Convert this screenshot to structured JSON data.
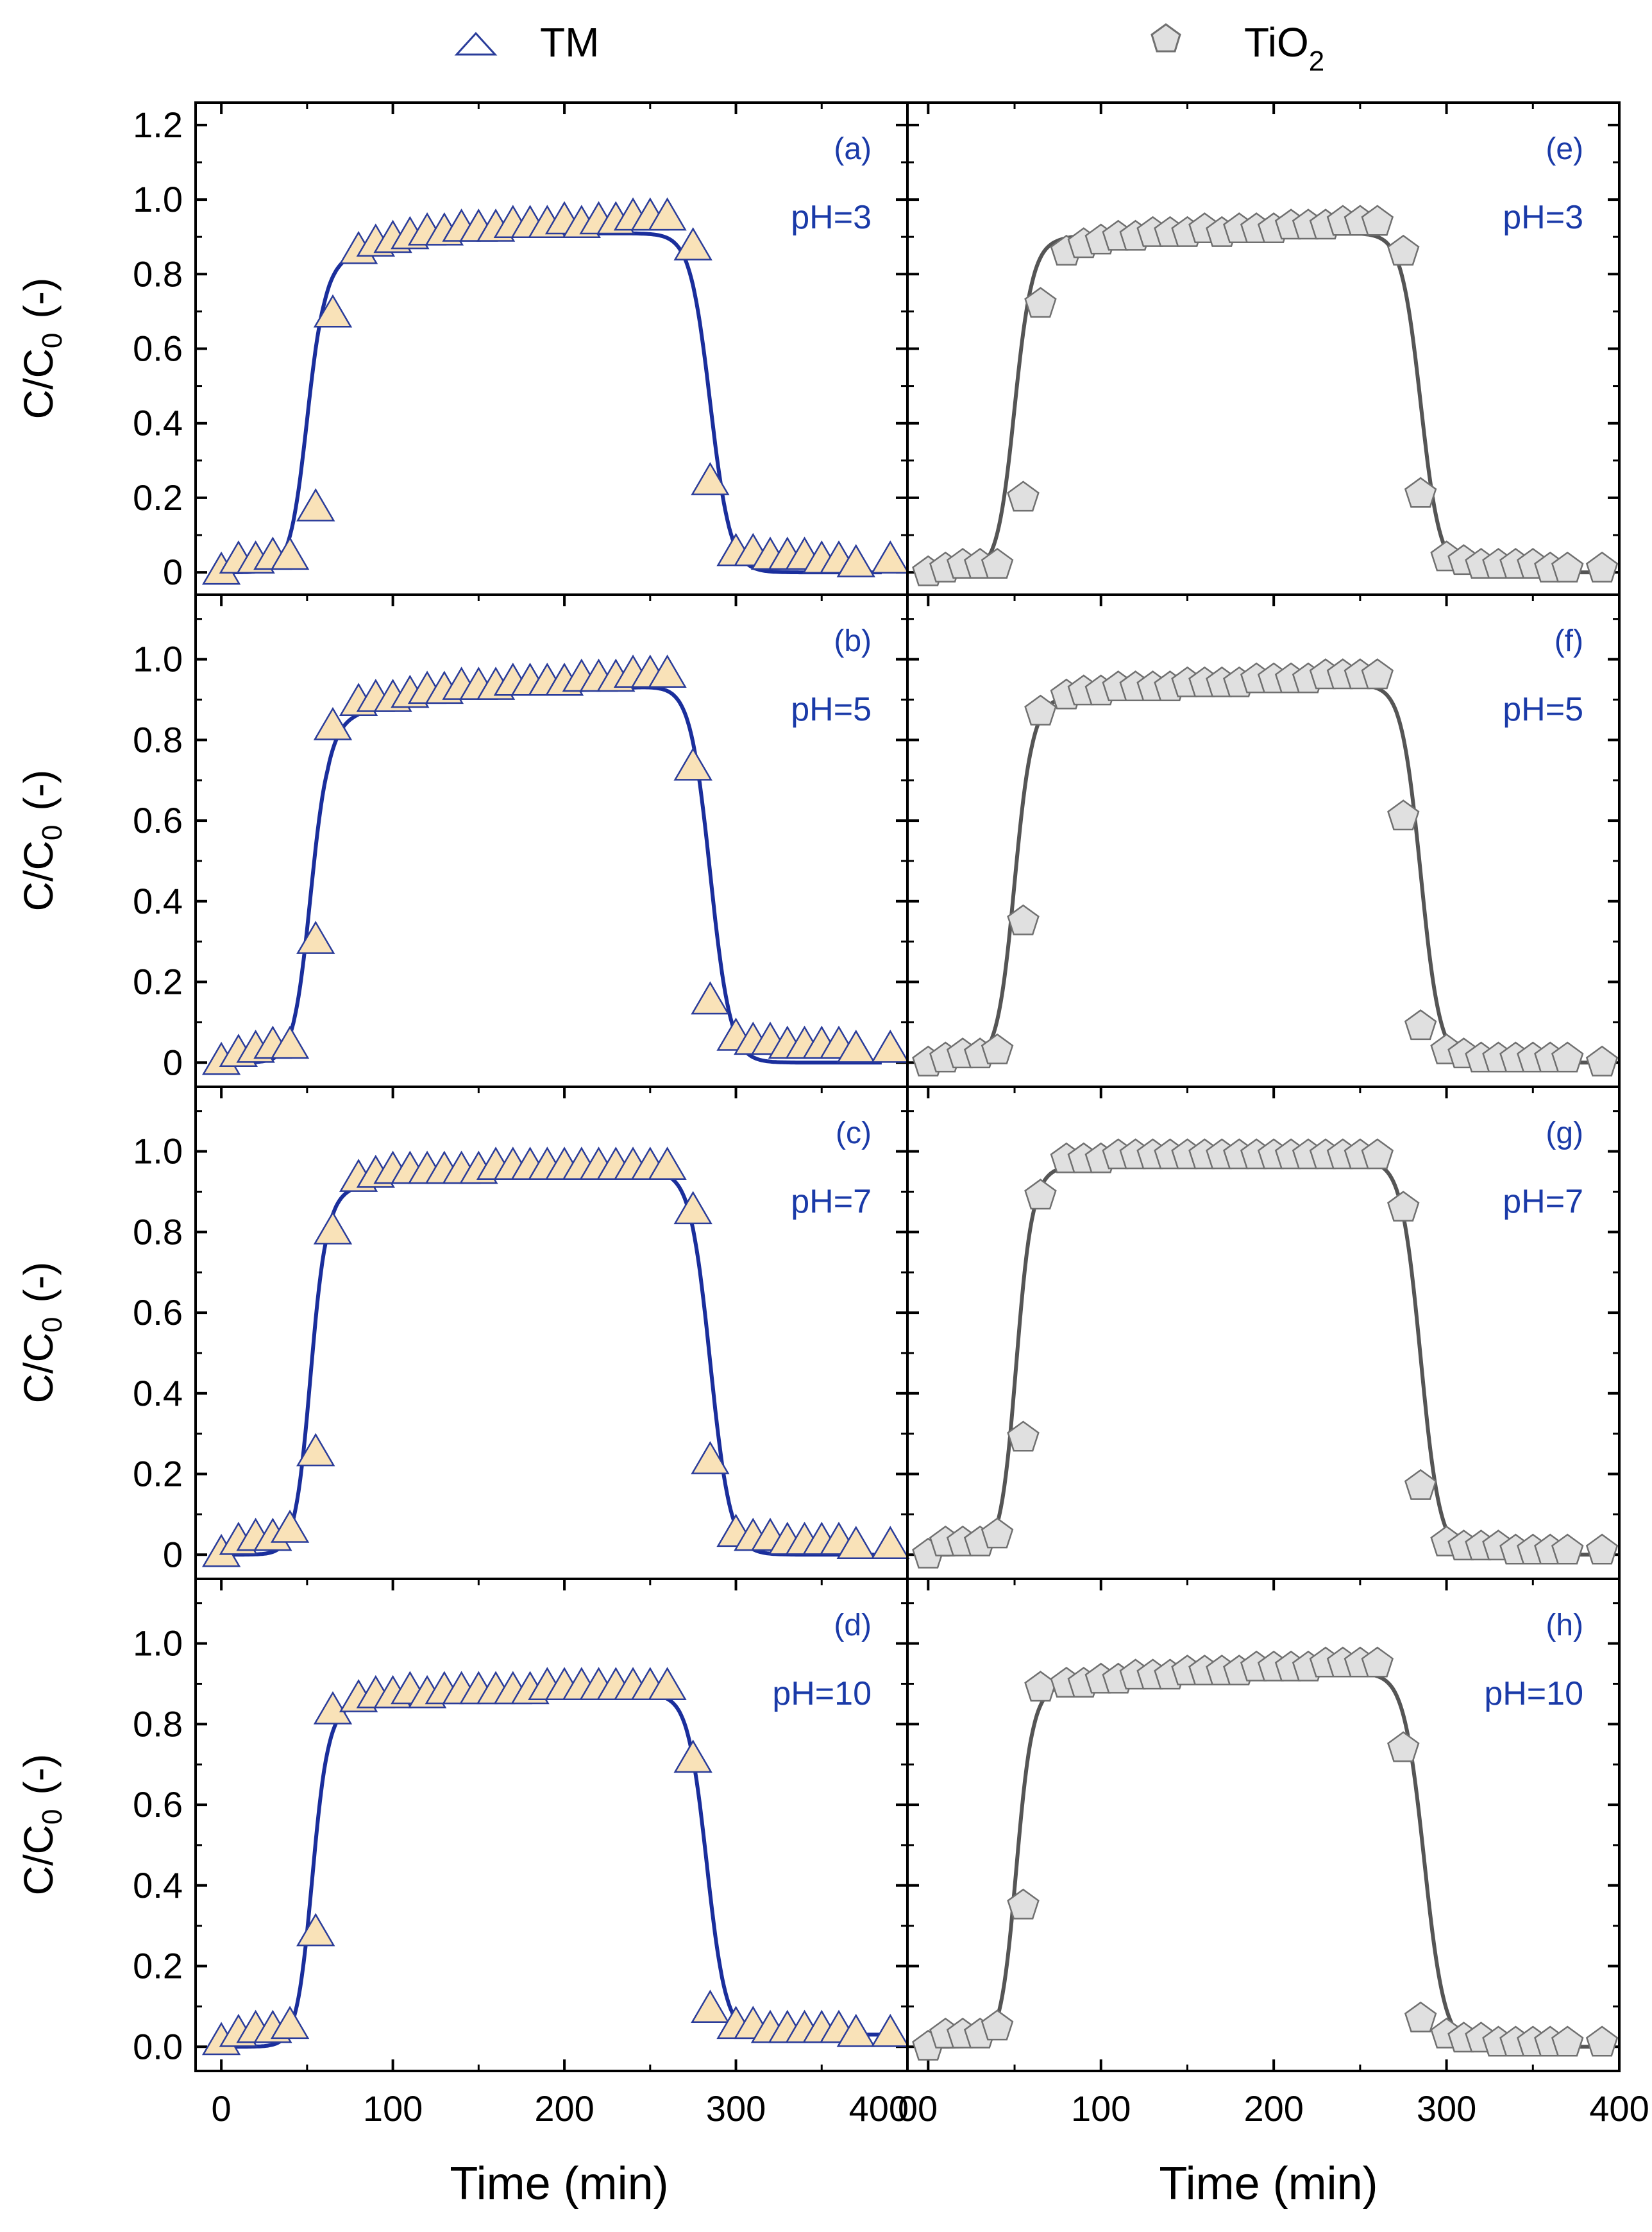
{
  "legend": {
    "entries": [
      {
        "label": "TM",
        "marker": "triangle"
      },
      {
        "label": "TiO",
        "subscript": "2",
        "marker": "pentagon"
      }
    ]
  },
  "colors": {
    "tm_line": "#1a2e9c",
    "tm_marker_fill": "#f9e2b8",
    "tm_marker_stroke": "#2a3c9a",
    "tio2_line": "#555555",
    "tio2_marker_fill": "#e0e0e0",
    "tio2_marker_stroke": "#707070",
    "annotation": "#1a3aa8"
  },
  "axes": {
    "ylabel_main": "C/C",
    "ylabel_sub": "0",
    "ylabel_tail": "(-)",
    "xlabel": "Time (min)"
  },
  "chart_data": [
    {
      "type": "scatter",
      "panel": "(a)",
      "annotation": "pH=3",
      "series_name": "TM",
      "xlim": [
        -15,
        400
      ],
      "ylim": [
        -0.06,
        1.26
      ],
      "yticks": [
        "0",
        "0.2",
        "0.4",
        "0.6",
        "0.8",
        "1.0",
        "1.2"
      ],
      "xticks": [
        "0",
        "100",
        "200",
        "300",
        "400"
      ],
      "x": [
        0,
        10,
        20,
        30,
        40,
        55,
        65,
        80,
        90,
        100,
        110,
        120,
        130,
        140,
        150,
        160,
        170,
        180,
        190,
        200,
        210,
        220,
        230,
        240,
        250,
        260,
        275,
        285,
        300,
        310,
        320,
        330,
        340,
        350,
        360,
        370,
        390
      ],
      "y": [
        0.0,
        0.03,
        0.03,
        0.04,
        0.04,
        0.17,
        0.69,
        0.86,
        0.88,
        0.89,
        0.9,
        0.91,
        0.91,
        0.92,
        0.92,
        0.92,
        0.93,
        0.93,
        0.93,
        0.94,
        0.93,
        0.94,
        0.94,
        0.95,
        0.95,
        0.95,
        0.87,
        0.24,
        0.05,
        0.05,
        0.04,
        0.04,
        0.04,
        0.03,
        0.03,
        0.02,
        0.03
      ],
      "fit": {
        "tb": 50,
        "k1": 0.2,
        "te": 285,
        "k2": 0.17,
        "plat": 0.91,
        "slope": 0,
        "dip": 0.09,
        "dk": 0.03
      }
    },
    {
      "type": "scatter",
      "panel": "(b)",
      "annotation": "pH=5",
      "series_name": "TM",
      "xlim": [
        -15,
        400
      ],
      "ylim": [
        -0.06,
        1.16
      ],
      "yticks": [
        "0",
        "0.2",
        "0.4",
        "0.6",
        "0.8",
        "1.0"
      ],
      "xticks": [
        "0",
        "100",
        "200",
        "300",
        "400"
      ],
      "x": [
        0,
        10,
        20,
        30,
        40,
        55,
        65,
        80,
        90,
        100,
        110,
        120,
        130,
        140,
        150,
        160,
        170,
        180,
        190,
        200,
        210,
        220,
        230,
        240,
        250,
        260,
        275,
        285,
        300,
        310,
        320,
        330,
        340,
        350,
        360,
        370,
        390
      ],
      "y": [
        0.0,
        0.02,
        0.03,
        0.04,
        0.04,
        0.3,
        0.83,
        0.89,
        0.9,
        0.9,
        0.91,
        0.92,
        0.92,
        0.93,
        0.93,
        0.93,
        0.94,
        0.94,
        0.94,
        0.94,
        0.95,
        0.95,
        0.95,
        0.96,
        0.96,
        0.96,
        0.73,
        0.15,
        0.06,
        0.05,
        0.05,
        0.04,
        0.04,
        0.04,
        0.04,
        0.03,
        0.03
      ],
      "fit": {
        "tb": 52,
        "k1": 0.2,
        "te": 285,
        "k2": 0.17,
        "plat": 0.895,
        "slope": 0.00022,
        "dip": 0.07,
        "dk": 0.05
      }
    },
    {
      "type": "scatter",
      "panel": "(c)",
      "annotation": "pH=7",
      "series_name": "TM",
      "xlim": [
        -15,
        400
      ],
      "ylim": [
        -0.06,
        1.16
      ],
      "yticks": [
        "0",
        "0.2",
        "0.4",
        "0.6",
        "0.8",
        "1.0"
      ],
      "xticks": [
        "0",
        "100",
        "200",
        "300",
        "400"
      ],
      "x": [
        0,
        10,
        20,
        30,
        40,
        55,
        65,
        80,
        90,
        100,
        110,
        120,
        130,
        140,
        150,
        160,
        170,
        180,
        190,
        200,
        210,
        220,
        230,
        240,
        250,
        260,
        275,
        285,
        300,
        310,
        320,
        330,
        340,
        350,
        360,
        370,
        390
      ],
      "y": [
        0.0,
        0.03,
        0.04,
        0.04,
        0.06,
        0.25,
        0.8,
        0.93,
        0.94,
        0.95,
        0.95,
        0.95,
        0.95,
        0.95,
        0.95,
        0.96,
        0.96,
        0.96,
        0.96,
        0.96,
        0.96,
        0.96,
        0.96,
        0.96,
        0.96,
        0.96,
        0.85,
        0.23,
        0.05,
        0.04,
        0.04,
        0.03,
        0.03,
        0.03,
        0.03,
        0.02,
        0.02
      ],
      "fit": {
        "tb": 52,
        "k1": 0.22,
        "te": 285,
        "k2": 0.17,
        "plat": 0.935,
        "slope": 0.0001,
        "dip": 0.05,
        "dk": 0.05
      }
    },
    {
      "type": "scatter",
      "panel": "(d)",
      "annotation": "pH=10",
      "series_name": "TM",
      "xlim": [
        -15,
        400
      ],
      "ylim": [
        -0.06,
        1.16
      ],
      "yticks": [
        "0.0",
        "0.2",
        "0.4",
        "0.6",
        "0.8",
        "1.0"
      ],
      "xticks": [
        "0",
        "100",
        "200",
        "300",
        "400"
      ],
      "x": [
        0,
        10,
        20,
        30,
        40,
        55,
        65,
        80,
        90,
        100,
        110,
        120,
        130,
        140,
        150,
        160,
        170,
        180,
        190,
        200,
        210,
        220,
        230,
        240,
        250,
        260,
        275,
        285,
        300,
        310,
        320,
        330,
        340,
        350,
        360,
        370,
        390
      ],
      "y": [
        0.01,
        0.03,
        0.04,
        0.04,
        0.05,
        0.28,
        0.83,
        0.86,
        0.87,
        0.87,
        0.88,
        0.87,
        0.88,
        0.88,
        0.88,
        0.88,
        0.88,
        0.88,
        0.89,
        0.89,
        0.89,
        0.89,
        0.89,
        0.89,
        0.89,
        0.89,
        0.71,
        0.09,
        0.05,
        0.05,
        0.04,
        0.04,
        0.04,
        0.04,
        0.04,
        0.03,
        0.03
      ],
      "fit": {
        "tb": 53,
        "k1": 0.22,
        "te": 283,
        "k2": 0.18,
        "plat": 0.865,
        "slope": 6e-05,
        "dip": 0.03,
        "dk": 0.05,
        "tail": 0.03
      }
    },
    {
      "type": "scatter",
      "panel": "(e)",
      "annotation": "pH=3",
      "series_name": "TiO2",
      "xlim": [
        -12,
        400
      ],
      "ylim": [
        -0.06,
        1.26
      ],
      "yticks": [],
      "xticks": [
        "00",
        "100",
        "200",
        "300",
        "400"
      ],
      "x": [
        0,
        10,
        20,
        30,
        40,
        55,
        65,
        80,
        90,
        100,
        110,
        120,
        130,
        140,
        150,
        160,
        170,
        180,
        190,
        200,
        210,
        220,
        230,
        240,
        250,
        260,
        275,
        285,
        300,
        310,
        320,
        330,
        340,
        350,
        360,
        370,
        390
      ],
      "y": [
        0.0,
        0.01,
        0.02,
        0.02,
        0.02,
        0.2,
        0.72,
        0.86,
        0.88,
        0.89,
        0.9,
        0.9,
        0.91,
        0.91,
        0.91,
        0.92,
        0.91,
        0.92,
        0.92,
        0.92,
        0.93,
        0.93,
        0.93,
        0.94,
        0.94,
        0.94,
        0.86,
        0.21,
        0.04,
        0.03,
        0.02,
        0.02,
        0.02,
        0.02,
        0.01,
        0.01,
        0.01
      ],
      "fit": {
        "tb": 50,
        "k1": 0.2,
        "te": 285,
        "k2": 0.18,
        "plat": 0.91,
        "slope": 0,
        "dip": 0.03,
        "dk": 0.05
      }
    },
    {
      "type": "scatter",
      "panel": "(f)",
      "annotation": "pH=5",
      "series_name": "TiO2",
      "xlim": [
        -12,
        400
      ],
      "ylim": [
        -0.06,
        1.16
      ],
      "yticks": [],
      "xticks": [
        "00",
        "100",
        "200",
        "300",
        "400"
      ],
      "x": [
        0,
        10,
        20,
        30,
        40,
        55,
        65,
        80,
        90,
        100,
        110,
        120,
        130,
        140,
        150,
        160,
        170,
        180,
        190,
        200,
        210,
        220,
        230,
        240,
        250,
        260,
        275,
        285,
        300,
        310,
        320,
        330,
        340,
        350,
        360,
        370,
        390
      ],
      "y": [
        0.0,
        0.01,
        0.02,
        0.02,
        0.03,
        0.35,
        0.87,
        0.91,
        0.92,
        0.92,
        0.93,
        0.93,
        0.93,
        0.93,
        0.94,
        0.94,
        0.94,
        0.94,
        0.95,
        0.95,
        0.95,
        0.95,
        0.96,
        0.96,
        0.96,
        0.96,
        0.61,
        0.09,
        0.03,
        0.02,
        0.01,
        0.01,
        0.01,
        0.01,
        0.01,
        0.01,
        0.0
      ],
      "fit": {
        "tb": 50,
        "k1": 0.2,
        "te": 285,
        "k2": 0.18,
        "plat": 0.92,
        "slope": 0.0001,
        "dip": 0.03,
        "dk": 0.05
      }
    },
    {
      "type": "scatter",
      "panel": "(g)",
      "annotation": "pH=7",
      "series_name": "TiO2",
      "xlim": [
        -12,
        400
      ],
      "ylim": [
        -0.06,
        1.16
      ],
      "yticks": [],
      "xticks": [
        "00",
        "100",
        "200",
        "300",
        "400"
      ],
      "x": [
        0,
        10,
        20,
        30,
        40,
        55,
        65,
        80,
        90,
        100,
        110,
        120,
        130,
        140,
        150,
        160,
        170,
        180,
        190,
        200,
        210,
        220,
        230,
        240,
        250,
        260,
        275,
        285,
        300,
        310,
        320,
        330,
        340,
        350,
        360,
        370,
        390
      ],
      "y": [
        0.0,
        0.03,
        0.03,
        0.03,
        0.05,
        0.29,
        0.89,
        0.98,
        0.98,
        0.98,
        0.99,
        0.99,
        0.99,
        0.99,
        0.99,
        0.99,
        0.99,
        0.99,
        0.99,
        0.99,
        0.99,
        0.99,
        0.99,
        0.99,
        0.99,
        0.99,
        0.86,
        0.17,
        0.03,
        0.02,
        0.02,
        0.02,
        0.01,
        0.01,
        0.01,
        0.01,
        0.01
      ],
      "fit": {
        "tb": 51,
        "k1": 0.22,
        "te": 285,
        "k2": 0.18,
        "plat": 0.975,
        "slope": 2e-05,
        "dip": 0.03,
        "dk": 0.05
      }
    },
    {
      "type": "scatter",
      "panel": "(h)",
      "annotation": "pH=10",
      "series_name": "TiO2",
      "xlim": [
        -12,
        400
      ],
      "ylim": [
        -0.06,
        1.16
      ],
      "yticks": [],
      "xticks": [
        "00",
        "100",
        "200",
        "300",
        "400"
      ],
      "x": [
        0,
        10,
        20,
        30,
        40,
        55,
        65,
        80,
        90,
        100,
        110,
        120,
        130,
        140,
        150,
        160,
        170,
        180,
        190,
        200,
        210,
        220,
        230,
        240,
        250,
        260,
        275,
        285,
        300,
        310,
        320,
        330,
        340,
        350,
        360,
        370,
        390
      ],
      "y": [
        0.0,
        0.03,
        0.03,
        0.03,
        0.05,
        0.35,
        0.89,
        0.9,
        0.9,
        0.91,
        0.91,
        0.92,
        0.92,
        0.92,
        0.93,
        0.93,
        0.93,
        0.93,
        0.94,
        0.94,
        0.94,
        0.94,
        0.95,
        0.95,
        0.95,
        0.95,
        0.74,
        0.07,
        0.03,
        0.02,
        0.02,
        0.01,
        0.01,
        0.01,
        0.01,
        0.01,
        0.01
      ],
      "fit": {
        "tb": 51,
        "k1": 0.22,
        "te": 287,
        "k2": 0.17,
        "plat": 0.91,
        "slope": 0.0001,
        "dip": 0.03,
        "dk": 0.05
      }
    }
  ]
}
